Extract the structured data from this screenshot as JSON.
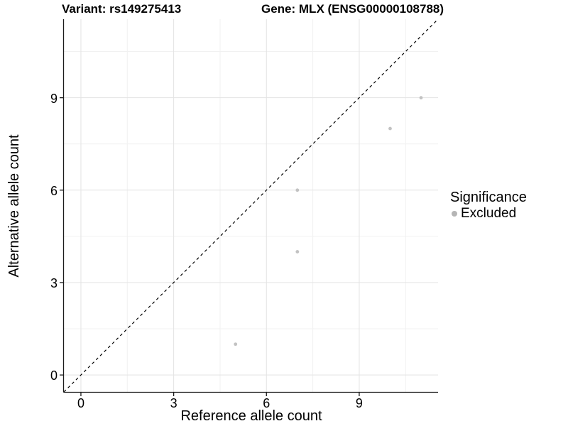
{
  "header": {
    "variant_title": "Variant: rs149275413",
    "gene_title": "Gene: MLX (ENSG00000108788)"
  },
  "legend": {
    "title": "Significance",
    "items": [
      {
        "label": "Excluded",
        "color": "#bdbdbd"
      }
    ]
  },
  "colors": {
    "point": "#c2c2c2",
    "legend_dot": "#b5b5b5",
    "grid_major": "#e3e3e3",
    "grid_minor": "#f1f1f1",
    "axis_line": "#1a1a1a",
    "reference_line": "#000000",
    "text": "#000000",
    "background": "#ffffff"
  },
  "chart_data": {
    "type": "scatter",
    "title": "Variant: rs149275413   |   Gene: MLX (ENSG00000108788)",
    "xlabel": "Reference allele count",
    "ylabel": "Alternative allele count",
    "xlim": [
      -0.55,
      11.55
    ],
    "ylim": [
      -0.55,
      11.55
    ],
    "x_ticks": [
      0,
      3,
      6,
      9
    ],
    "y_ticks": [
      0,
      3,
      6,
      9
    ],
    "x_minor_ticks": [
      1.5,
      4.5,
      7.5,
      10.5
    ],
    "y_minor_ticks": [
      1.5,
      4.5,
      7.5,
      10.5
    ],
    "grid": true,
    "legend_position": "right",
    "series": [
      {
        "name": "Excluded",
        "color": "#c2c2c2",
        "points": [
          [
            5,
            1
          ],
          [
            7,
            4
          ],
          [
            7,
            6
          ],
          [
            10,
            8
          ],
          [
            11,
            9
          ]
        ]
      }
    ],
    "reference_line": {
      "kind": "identity",
      "style": "dashed",
      "color": "#000000"
    }
  }
}
